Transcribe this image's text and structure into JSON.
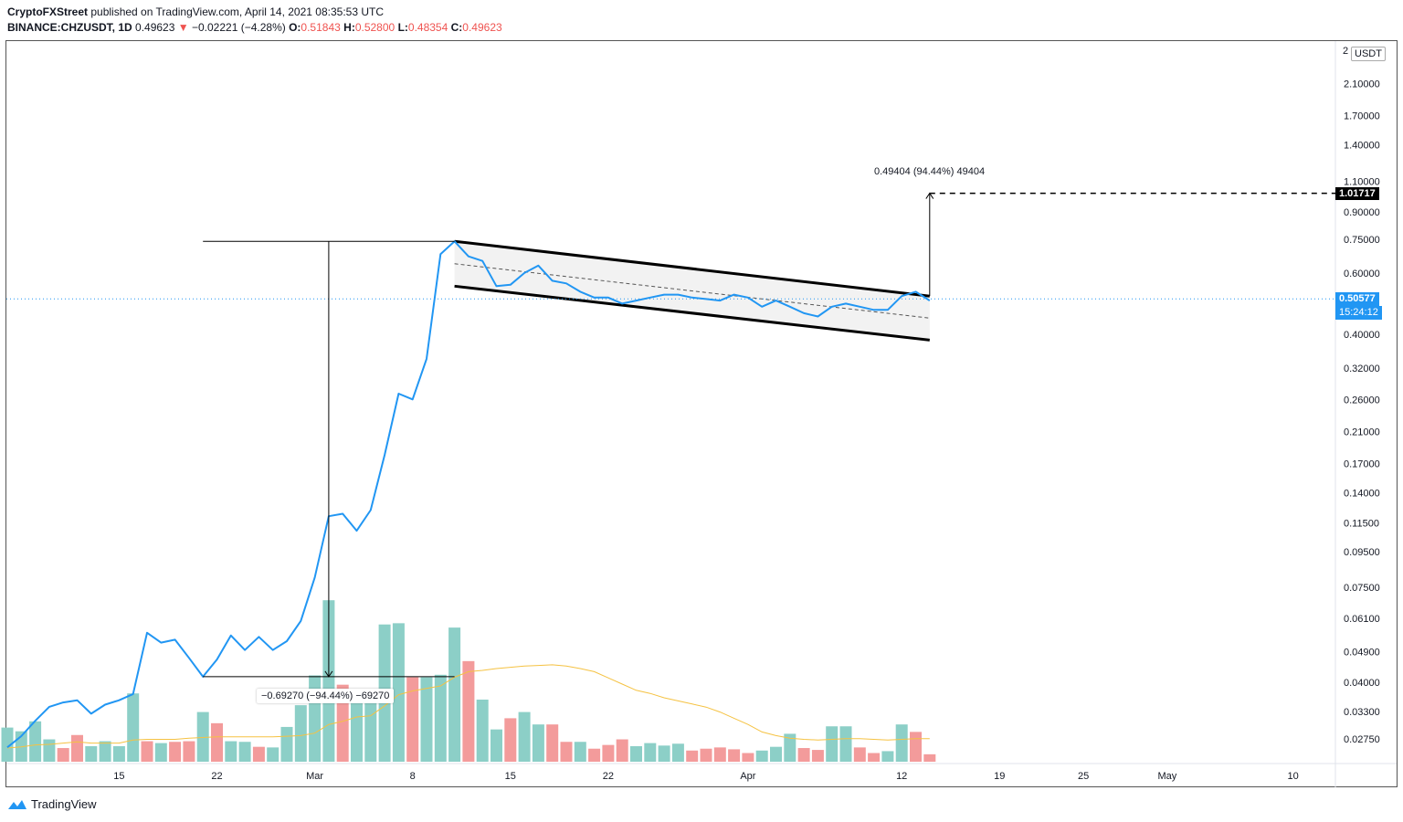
{
  "header": {
    "publisher": "CryptoFXStreet",
    "published_text": " published on TradingView.com, April 14, 2021 08:35:53 UTC",
    "symbol": "BINANCE:CHZUSDT, 1D",
    "last": "0.49623",
    "change": "−0.02221 (−4.28%)",
    "o_label": "O:",
    "o": "0.51843",
    "h_label": "H:",
    "h": "0.52800",
    "l_label": "L:",
    "l": "0.48354",
    "c_label": "C:",
    "c": "0.49623"
  },
  "axis": {
    "currency": "USDT",
    "top_clip": "2",
    "target_price": "1.01717",
    "current_price": "0.50577",
    "countdown": "15:24:12"
  },
  "annotations": {
    "up": "0.49404 (94.44%) 49404",
    "down": "−0.69270 (−94.44%) −69270"
  },
  "brand": {
    "name": "TradingView",
    "icon": "tradingview-logo-icon"
  },
  "colors": {
    "price_line": "#2196f3",
    "vol_up": "#8ccfc7",
    "vol_down": "#f39b9b",
    "ma": "#f5c242",
    "channel_fill": "#f2f2f2"
  },
  "chart_data": {
    "type": "line",
    "scale": "log",
    "y_ticks": [
      2.1,
      1.7,
      1.4,
      1.1,
      0.9,
      0.75,
      0.6,
      0.5,
      0.4,
      0.32,
      0.26,
      0.21,
      0.17,
      0.14,
      0.115,
      0.095,
      0.075,
      0.061,
      0.049,
      0.04,
      0.033,
      0.0275
    ],
    "y_tick_labels": [
      "2.10000",
      "1.70000",
      "1.40000",
      "1.10000",
      "0.90000",
      "0.75000",
      "0.60000",
      "",
      "0.40000",
      "0.32000",
      "0.26000",
      "0.21000",
      "0.17000",
      "0.14000",
      "0.11500",
      "0.09500",
      "0.07500",
      "0.06100",
      "0.04900",
      "0.04000",
      "0.03300",
      "0.02750"
    ],
    "x_tick_labels": [
      {
        "day": 8,
        "label": "15"
      },
      {
        "day": 15,
        "label": "22"
      },
      {
        "day": 22,
        "label": "Mar"
      },
      {
        "day": 29,
        "label": "8"
      },
      {
        "day": 36,
        "label": "15"
      },
      {
        "day": 43,
        "label": "22"
      },
      {
        "day": 53,
        "label": "Apr"
      },
      {
        "day": 64,
        "label": "12"
      },
      {
        "day": 71,
        "label": "19"
      },
      {
        "day": 77,
        "label": "25"
      },
      {
        "day": 83,
        "label": "May"
      },
      {
        "day": 92,
        "label": "10"
      }
    ],
    "price": [
      0.026,
      0.028,
      0.031,
      0.034,
      0.035,
      0.0355,
      0.0325,
      0.0345,
      0.0355,
      0.037,
      0.0555,
      0.052,
      0.053,
      0.047,
      0.0415,
      0.0465,
      0.0545,
      0.0495,
      0.054,
      0.0495,
      0.0525,
      0.06,
      0.08,
      0.12,
      0.122,
      0.109,
      0.125,
      0.18,
      0.27,
      0.26,
      0.34,
      0.68,
      0.74,
      0.67,
      0.65,
      0.55,
      0.555,
      0.6,
      0.63,
      0.57,
      0.56,
      0.53,
      0.51,
      0.51,
      0.49,
      0.5,
      0.51,
      0.52,
      0.52,
      0.51,
      0.505,
      0.5,
      0.52,
      0.51,
      0.48,
      0.5,
      0.48,
      0.46,
      0.45,
      0.48,
      0.49,
      0.48,
      0.47,
      0.47,
      0.515,
      0.53,
      0.5
    ],
    "volume": [
      {
        "v": 0.55,
        "up": true
      },
      {
        "v": 0.49,
        "up": true
      },
      {
        "v": 0.65,
        "up": true
      },
      {
        "v": 0.36,
        "up": true
      },
      {
        "v": 0.22,
        "up": false
      },
      {
        "v": 0.43,
        "up": false
      },
      {
        "v": 0.25,
        "up": true
      },
      {
        "v": 0.33,
        "up": true
      },
      {
        "v": 0.25,
        "up": true
      },
      {
        "v": 1.1,
        "up": true
      },
      {
        "v": 0.33,
        "up": false
      },
      {
        "v": 0.3,
        "up": true
      },
      {
        "v": 0.32,
        "up": false
      },
      {
        "v": 0.33,
        "up": false
      },
      {
        "v": 0.8,
        "up": true
      },
      {
        "v": 0.62,
        "up": false
      },
      {
        "v": 0.33,
        "up": true
      },
      {
        "v": 0.32,
        "up": true
      },
      {
        "v": 0.24,
        "up": false
      },
      {
        "v": 0.23,
        "up": true
      },
      {
        "v": 0.56,
        "up": true
      },
      {
        "v": 0.91,
        "up": true
      },
      {
        "v": 1.39,
        "up": true
      },
      {
        "v": 2.6,
        "up": true
      },
      {
        "v": 1.24,
        "up": false
      },
      {
        "v": 0.96,
        "up": true
      },
      {
        "v": 1.06,
        "up": true
      },
      {
        "v": 2.21,
        "up": true
      },
      {
        "v": 2.23,
        "up": true
      },
      {
        "v": 1.36,
        "up": false
      },
      {
        "v": 1.36,
        "up": true
      },
      {
        "v": 1.4,
        "up": true
      },
      {
        "v": 2.16,
        "up": true
      },
      {
        "v": 1.62,
        "up": false
      },
      {
        "v": 1.0,
        "up": true
      },
      {
        "v": 0.52,
        "up": true
      },
      {
        "v": 0.7,
        "up": false
      },
      {
        "v": 0.8,
        "up": true
      },
      {
        "v": 0.6,
        "up": true
      },
      {
        "v": 0.6,
        "up": false
      },
      {
        "v": 0.32,
        "up": false
      },
      {
        "v": 0.32,
        "up": true
      },
      {
        "v": 0.21,
        "up": false
      },
      {
        "v": 0.27,
        "up": false
      },
      {
        "v": 0.36,
        "up": false
      },
      {
        "v": 0.25,
        "up": true
      },
      {
        "v": 0.3,
        "up": true
      },
      {
        "v": 0.26,
        "up": true
      },
      {
        "v": 0.29,
        "up": true
      },
      {
        "v": 0.18,
        "up": false
      },
      {
        "v": 0.21,
        "up": false
      },
      {
        "v": 0.23,
        "up": false
      },
      {
        "v": 0.2,
        "up": false
      },
      {
        "v": 0.14,
        "up": false
      },
      {
        "v": 0.18,
        "up": true
      },
      {
        "v": 0.24,
        "up": true
      },
      {
        "v": 0.45,
        "up": true
      },
      {
        "v": 0.22,
        "up": false
      },
      {
        "v": 0.19,
        "up": false
      },
      {
        "v": 0.57,
        "up": true
      },
      {
        "v": 0.57,
        "up": true
      },
      {
        "v": 0.23,
        "up": false
      },
      {
        "v": 0.14,
        "up": false
      },
      {
        "v": 0.17,
        "up": true
      },
      {
        "v": 0.6,
        "up": true
      },
      {
        "v": 0.48,
        "up": false
      },
      {
        "v": 0.12,
        "up": false
      }
    ],
    "volume_ma": [
      0.22,
      0.24,
      0.27,
      0.28,
      0.3,
      0.32,
      0.3,
      0.3,
      0.3,
      0.35,
      0.36,
      0.36,
      0.36,
      0.38,
      0.39,
      0.4,
      0.4,
      0.4,
      0.4,
      0.4,
      0.41,
      0.42,
      0.46,
      0.6,
      0.65,
      0.72,
      0.74,
      0.9,
      1.08,
      1.14,
      1.18,
      1.22,
      1.36,
      1.45,
      1.47,
      1.5,
      1.52,
      1.54,
      1.55,
      1.56,
      1.54,
      1.5,
      1.45,
      1.35,
      1.25,
      1.15,
      1.1,
      1.03,
      0.98,
      0.93,
      0.88,
      0.8,
      0.7,
      0.6,
      0.48,
      0.42,
      0.38,
      0.36,
      0.35,
      0.36,
      0.37,
      0.37,
      0.36,
      0.35,
      0.36,
      0.37,
      0.37
    ]
  }
}
